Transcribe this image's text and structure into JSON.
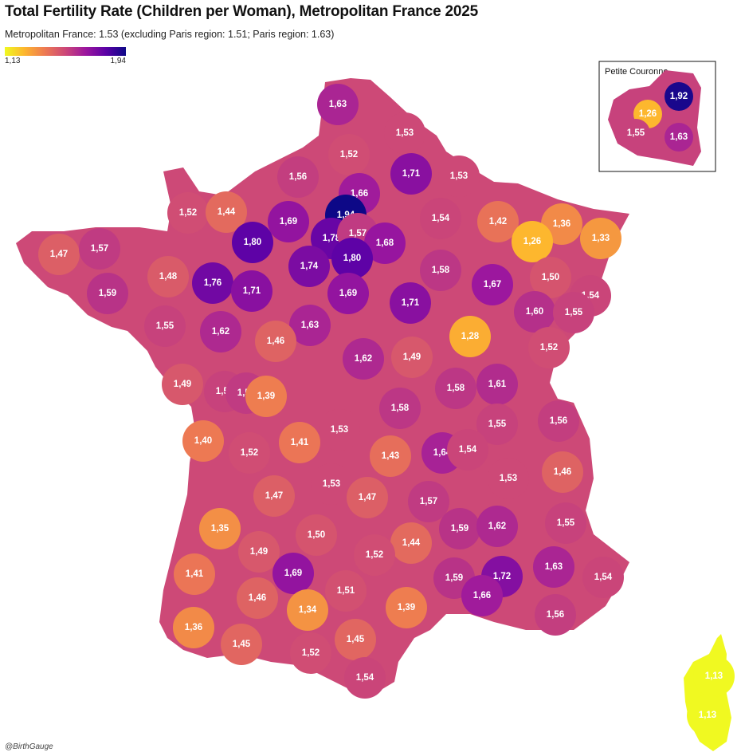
{
  "title": "Total Fertility Rate (Children per Woman), Metropolitan France 2025",
  "subtitle": "Metropolitan France: 1.53 (excluding Paris region: 1.51; Paris region: 1.63)",
  "legend": {
    "min_label": "1,13",
    "max_label": "1,94",
    "min": 1.13,
    "max": 1.94,
    "colors": [
      "#f0f921",
      "#fdb42f",
      "#ed7953",
      "#cc4778",
      "#9c179e",
      "#5c01a6",
      "#0d0887"
    ]
  },
  "inset": {
    "title": "Petite Couronne"
  },
  "credit": "@BirthGauge",
  "map_data": {
    "regions": [
      {
        "label": "1,63",
        "value": 1.63
      },
      {
        "label": "1,53",
        "value": 1.53
      },
      {
        "label": "1,52",
        "value": 1.52
      },
      {
        "label": "1,56",
        "value": 1.56
      },
      {
        "label": "1,66",
        "value": 1.66
      },
      {
        "label": "1,71",
        "value": 1.71
      },
      {
        "label": "1,53",
        "value": 1.53
      },
      {
        "label": "1,52",
        "value": 1.52
      },
      {
        "label": "1,44",
        "value": 1.44
      },
      {
        "label": "1,69",
        "value": 1.69
      },
      {
        "label": "1,94",
        "value": 1.94
      },
      {
        "label": "1,78",
        "value": 1.78
      },
      {
        "label": "1,57",
        "value": 1.57
      },
      {
        "label": "1,68",
        "value": 1.68
      },
      {
        "label": "1,54",
        "value": 1.54
      },
      {
        "label": "1,42",
        "value": 1.42
      },
      {
        "label": "1,36",
        "value": 1.36
      },
      {
        "label": "1,26",
        "value": 1.26
      },
      {
        "label": "1,33",
        "value": 1.33
      },
      {
        "label": "1,47",
        "value": 1.47
      },
      {
        "label": "1,57",
        "value": 1.57
      },
      {
        "label": "1,80",
        "value": 1.8
      },
      {
        "label": "1,74",
        "value": 1.74
      },
      {
        "label": "1,80",
        "value": 1.8
      },
      {
        "label": "1,48",
        "value": 1.48
      },
      {
        "label": "1,58",
        "value": 1.58
      },
      {
        "label": "1,67",
        "value": 1.67
      },
      {
        "label": "1,50",
        "value": 1.5
      },
      {
        "label": "1,59",
        "value": 1.59
      },
      {
        "label": "1,76",
        "value": 1.76
      },
      {
        "label": "1,71",
        "value": 1.71
      },
      {
        "label": "1,69",
        "value": 1.69
      },
      {
        "label": "1,71",
        "value": 1.71
      },
      {
        "label": "1,54",
        "value": 1.54
      },
      {
        "label": "1,55",
        "value": 1.55
      },
      {
        "label": "1,62",
        "value": 1.62
      },
      {
        "label": "1,63",
        "value": 1.63
      },
      {
        "label": "1,60",
        "value": 1.6
      },
      {
        "label": "1,55",
        "value": 1.55
      },
      {
        "label": "1,28",
        "value": 1.28
      },
      {
        "label": "1,46",
        "value": 1.46
      },
      {
        "label": "1,62",
        "value": 1.62
      },
      {
        "label": "1,49",
        "value": 1.49
      },
      {
        "label": "1,52",
        "value": 1.52
      },
      {
        "label": "1,49",
        "value": 1.49
      },
      {
        "label": "1,55",
        "value": 1.55
      },
      {
        "label": "1,61",
        "value": 1.61
      },
      {
        "label": "1,57",
        "value": 1.57
      },
      {
        "label": "1,39",
        "value": 1.39
      },
      {
        "label": "1,58",
        "value": 1.58
      },
      {
        "label": "1,58",
        "value": 1.58
      },
      {
        "label": "1,55",
        "value": 1.55
      },
      {
        "label": "1,56",
        "value": 1.56
      },
      {
        "label": "1,40",
        "value": 1.4
      },
      {
        "label": "1,41",
        "value": 1.41
      },
      {
        "label": "1,53",
        "value": 1.53
      },
      {
        "label": "1,52",
        "value": 1.52
      },
      {
        "label": "1,43",
        "value": 1.43
      },
      {
        "label": "1,64",
        "value": 1.64
      },
      {
        "label": "1,54",
        "value": 1.54
      },
      {
        "label": "1,53",
        "value": 1.53
      },
      {
        "label": "1,46",
        "value": 1.46
      },
      {
        "label": "1,47",
        "value": 1.47
      },
      {
        "label": "1,53",
        "value": 1.53
      },
      {
        "label": "1,47",
        "value": 1.47
      },
      {
        "label": "1,57",
        "value": 1.57
      },
      {
        "label": "1,35",
        "value": 1.35
      },
      {
        "label": "1,50",
        "value": 1.5
      },
      {
        "label": "1,59",
        "value": 1.59
      },
      {
        "label": "1,62",
        "value": 1.62
      },
      {
        "label": "1,55",
        "value": 1.55
      },
      {
        "label": "1,44",
        "value": 1.44
      },
      {
        "label": "1,49",
        "value": 1.49
      },
      {
        "label": "1,52",
        "value": 1.52
      },
      {
        "label": "1,41",
        "value": 1.41
      },
      {
        "label": "1,69",
        "value": 1.69
      },
      {
        "label": "1,59",
        "value": 1.59
      },
      {
        "label": "1,72",
        "value": 1.72
      },
      {
        "label": "1,63",
        "value": 1.63
      },
      {
        "label": "1,54",
        "value": 1.54
      },
      {
        "label": "1,46",
        "value": 1.46
      },
      {
        "label": "1,51",
        "value": 1.51
      },
      {
        "label": "1,66",
        "value": 1.66
      },
      {
        "label": "1,36",
        "value": 1.36
      },
      {
        "label": "1,34",
        "value": 1.34
      },
      {
        "label": "1,39",
        "value": 1.39
      },
      {
        "label": "1,56",
        "value": 1.56
      },
      {
        "label": "1,45",
        "value": 1.45
      },
      {
        "label": "1,45",
        "value": 1.45
      },
      {
        "label": "1,52",
        "value": 1.52
      },
      {
        "label": "1,54",
        "value": 1.54
      },
      {
        "label": "1,13",
        "value": 1.13
      },
      {
        "label": "1,13",
        "value": 1.13
      }
    ],
    "inset_regions": [
      {
        "label": "1,92",
        "value": 1.92
      },
      {
        "label": "1,26",
        "value": 1.26
      },
      {
        "label": "1,55",
        "value": 1.55
      },
      {
        "label": "1,63",
        "value": 1.63
      }
    ]
  }
}
